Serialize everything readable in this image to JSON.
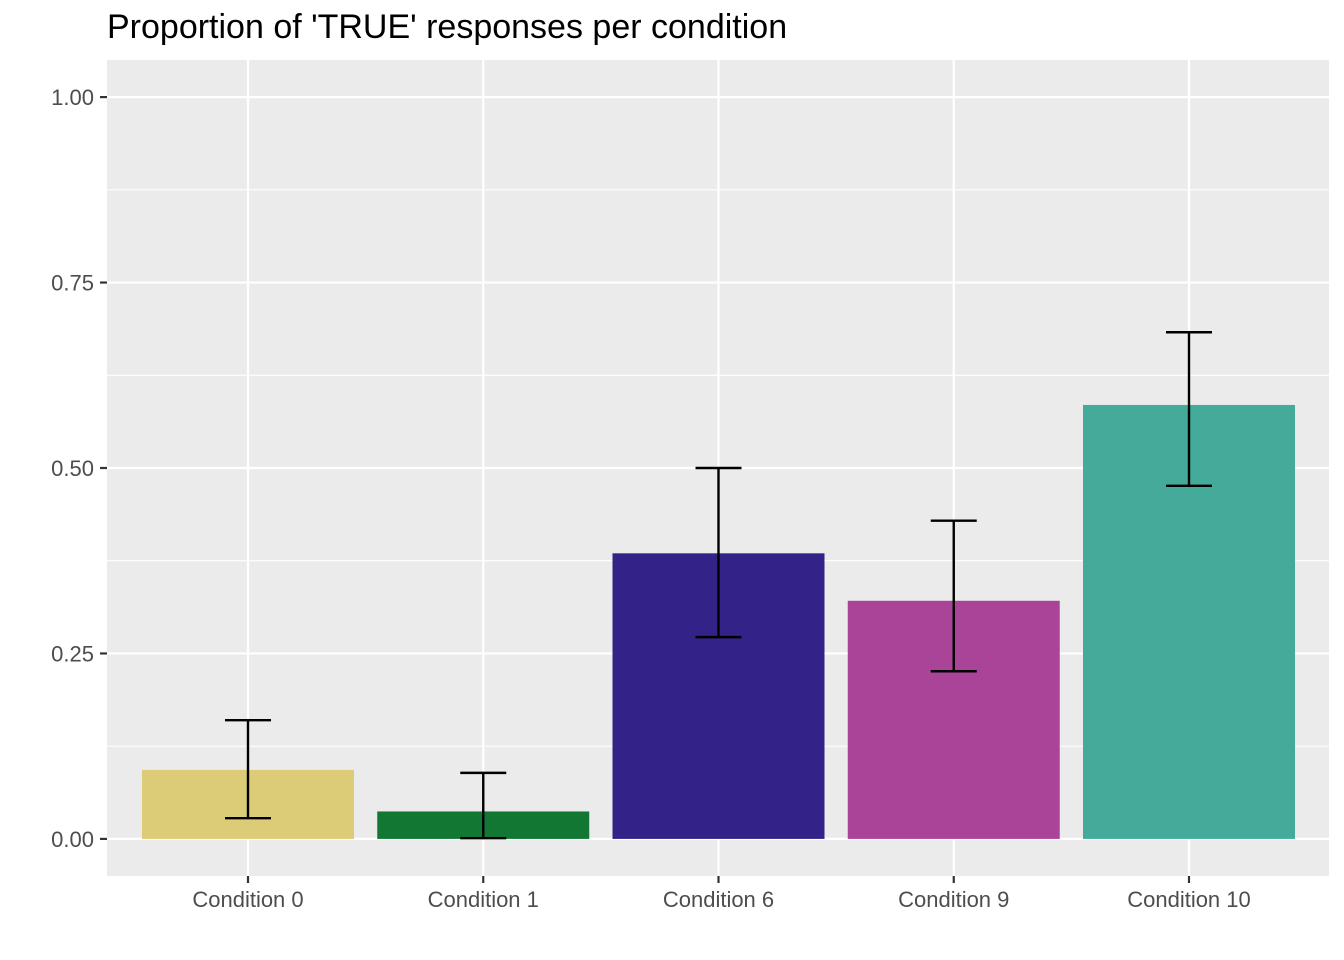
{
  "chart_data": {
    "type": "bar",
    "title": "Proportion of 'TRUE' responses per condition",
    "xlabel": "",
    "ylabel": "",
    "categories": [
      "Condition 0",
      "Condition 1",
      "Condition 6",
      "Condition 9",
      "Condition 10"
    ],
    "values": [
      0.093,
      0.037,
      0.385,
      0.321,
      0.585
    ],
    "error_low": [
      0.028,
      0.001,
      0.272,
      0.226,
      0.476
    ],
    "error_high": [
      0.16,
      0.089,
      0.5,
      0.429,
      0.683
    ],
    "colors": [
      "#DDCC77",
      "#117733",
      "#332288",
      "#AA4499",
      "#44AA99"
    ],
    "ylim": [
      -0.05,
      1.05
    ],
    "yticks": [
      0.0,
      0.25,
      0.5,
      0.75,
      1.0
    ],
    "ytick_labels": [
      "0.00",
      "0.25",
      "0.50",
      "0.75",
      "1.00"
    ],
    "grid": true,
    "legend": "none",
    "panel_background": "#EBEBEB",
    "grid_color": "#FFFFFF"
  }
}
